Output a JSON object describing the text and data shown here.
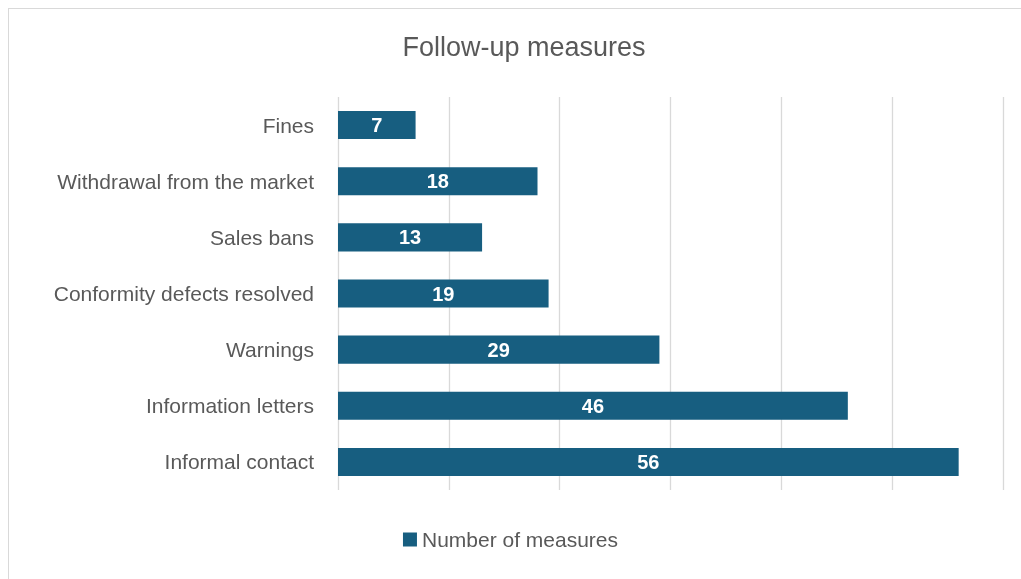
{
  "chart_data": {
    "type": "bar",
    "orientation": "horizontal",
    "title": "Follow-up measures",
    "categories": [
      "Fines",
      "Withdrawal from the market",
      "Sales bans",
      "Conformity defects resolved",
      "Warnings",
      "Information letters",
      "Informal contact"
    ],
    "series": [
      {
        "name": "Number of measures",
        "color": "#175e80",
        "values": [
          7,
          18,
          13,
          19,
          29,
          46,
          56
        ]
      }
    ],
    "xlim": [
      0,
      60
    ],
    "xticks": [
      {
        "value": 0,
        "label": null
      },
      {
        "value": 10,
        "label": null
      },
      {
        "value": 20,
        "label": null
      },
      {
        "value": 30,
        "label": null
      },
      {
        "value": 40,
        "label": null
      },
      {
        "value": 50,
        "label": null
      },
      {
        "value": 60,
        "label": null
      }
    ],
    "tick_labels": "y",
    "grid": "x",
    "legend": "bottom",
    "data_labels": true
  }
}
